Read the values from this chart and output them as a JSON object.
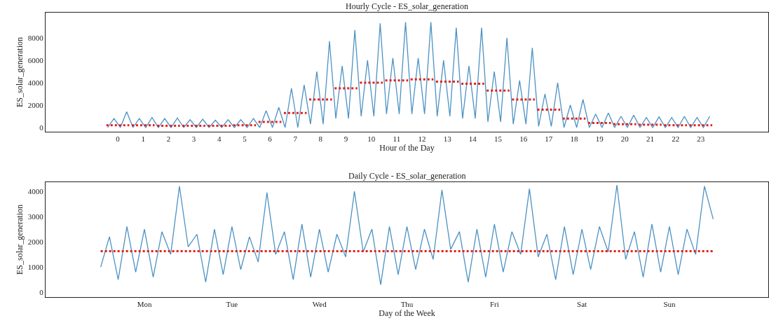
{
  "chart_data": [
    {
      "type": "line",
      "title": "Hourly Cycle - ES_solar_generation",
      "xlabel": "Hour of the Day",
      "ylabel": "ES_solar_generation",
      "xlim": [
        -2.85,
        25.66
      ],
      "ylim": [
        -375,
        10250
      ],
      "xticks": [
        0,
        1,
        2,
        3,
        4,
        5,
        6,
        7,
        8,
        9,
        10,
        11,
        12,
        13,
        14,
        15,
        16,
        17,
        18,
        19,
        20,
        21,
        22,
        23
      ],
      "yticks": [
        0,
        2000,
        4000,
        6000,
        8000
      ],
      "marker": "none",
      "series": [
        {
          "color": "#4c92c3",
          "line_style": "solid",
          "x": [
            -0.4,
            -0.15,
            0.1,
            0.35,
            0.6,
            0.85,
            1.1,
            1.35,
            1.6,
            1.85,
            2.1,
            2.35,
            2.6,
            2.85,
            3.1,
            3.35,
            3.6,
            3.85,
            4.1,
            4.35,
            4.6,
            4.85,
            5.1,
            5.35,
            5.6,
            5.85,
            6.1,
            6.35,
            6.6,
            6.85,
            7.1,
            7.35,
            7.6,
            7.85,
            8.1,
            8.35,
            8.6,
            8.85,
            9.1,
            9.35,
            9.6,
            9.85,
            10.1,
            10.35,
            10.6,
            10.85,
            11.1,
            11.35,
            11.6,
            11.85,
            12.1,
            12.35,
            12.6,
            12.85,
            13.1,
            13.35,
            13.6,
            13.85,
            14.1,
            14.35,
            14.6,
            14.85,
            15.1,
            15.35,
            15.6,
            15.85,
            16.1,
            16.35,
            16.6,
            16.85,
            17.1,
            17.35,
            17.6,
            17.85,
            18.1,
            18.35,
            18.6,
            18.85,
            19.1,
            19.35,
            19.6,
            19.85,
            20.1,
            20.35,
            20.6,
            20.85,
            21.1,
            21.35,
            21.6,
            21.85,
            22.1,
            22.35,
            22.6,
            22.85,
            23.1,
            23.35
          ],
          "values": [
            0,
            800,
            0,
            1400,
            0,
            800,
            0,
            900,
            0,
            800,
            0,
            850,
            0,
            700,
            0,
            750,
            0,
            650,
            0,
            700,
            0,
            700,
            0,
            800,
            0,
            1500,
            0,
            1800,
            0,
            3500,
            0,
            3800,
            300,
            5000,
            300,
            7700,
            800,
            5500,
            800,
            8700,
            1000,
            6000,
            1000,
            9300,
            1200,
            6200,
            1200,
            9400,
            1200,
            6200,
            1200,
            9400,
            1000,
            6000,
            1000,
            8900,
            800,
            5500,
            800,
            8900,
            500,
            5000,
            500,
            8000,
            300,
            4200,
            300,
            7100,
            100,
            3000,
            100,
            4000,
            0,
            2000,
            0,
            2500,
            0,
            1200,
            0,
            1300,
            0,
            1000,
            0,
            1100,
            0,
            900,
            0,
            950,
            0,
            900,
            0,
            1000,
            0,
            900,
            0,
            1000
          ]
        },
        {
          "color": "#e3201b",
          "line_style": "dotted",
          "x": [
            -0.45,
            0.45,
            0.5,
            0.55,
            1.45,
            1.5,
            1.55,
            2.45,
            2.5,
            2.55,
            3.45,
            3.5,
            3.55,
            4.45,
            4.5,
            4.55,
            5.45,
            5.5,
            5.55,
            6.45,
            6.5,
            6.55,
            7.45,
            7.5,
            7.55,
            8.45,
            8.5,
            8.55,
            9.45,
            9.5,
            9.55,
            10.45,
            10.5,
            10.55,
            11.45,
            11.5,
            11.55,
            12.45,
            12.5,
            12.55,
            13.45,
            13.5,
            13.55,
            14.45,
            14.5,
            14.55,
            15.45,
            15.5,
            15.55,
            16.45,
            16.5,
            16.55,
            17.45,
            17.5,
            17.55,
            18.45,
            18.5,
            18.55,
            19.45,
            19.5,
            19.55,
            20.45,
            20.5,
            20.55,
            21.45,
            21.5,
            21.55,
            22.45,
            22.5,
            22.55,
            23.45
          ],
          "values": [
            200,
            200,
            null,
            200,
            200,
            null,
            150,
            150,
            null,
            150,
            150,
            null,
            150,
            150,
            null,
            200,
            200,
            null,
            500,
            500,
            null,
            1300,
            1300,
            null,
            2500,
            2500,
            null,
            3500,
            3500,
            null,
            4000,
            4000,
            null,
            4200,
            4200,
            null,
            4300,
            4300,
            null,
            4100,
            4100,
            null,
            3900,
            3900,
            null,
            3300,
            3300,
            null,
            2500,
            2500,
            null,
            1600,
            1600,
            null,
            800,
            800,
            null,
            400,
            400,
            null,
            300,
            300,
            null,
            250,
            250,
            null,
            200,
            200,
            null,
            200,
            200
          ]
        }
      ]
    },
    {
      "type": "line",
      "title": "Daily Cycle - ES_solar_generation",
      "xlabel": "Day of the Week",
      "ylabel": "ES_solar_generation",
      "categories": [
        null,
        null,
        null,
        null,
        null,
        "Mon",
        null,
        null,
        null,
        null,
        null,
        null,
        null,
        null,
        null,
        "Tue",
        null,
        null,
        null,
        null,
        null,
        null,
        null,
        null,
        null,
        "Wed",
        null,
        null,
        null,
        null,
        null,
        null,
        null,
        null,
        null,
        "Thu",
        null,
        null,
        null,
        null,
        null,
        null,
        null,
        null,
        null,
        "Fri",
        null,
        null,
        null,
        null,
        null,
        null,
        null,
        null,
        null,
        "Sat",
        null,
        null,
        null,
        null,
        null,
        null,
        null,
        null,
        null,
        "Sun",
        null,
        null,
        null,
        null,
        null
      ],
      "ylim": [
        -190,
        4360
      ],
      "yticks": [
        0,
        1000,
        2000,
        3000,
        4000
      ],
      "marker": "none",
      "series": [
        {
          "color": "#4c92c3",
          "line_style": "solid",
          "values": [
            1000,
            2200,
            500,
            2600,
            800,
            2500,
            600,
            2400,
            1500,
            4200,
            1800,
            2300,
            400,
            2500,
            700,
            2600,
            900,
            2200,
            1200,
            3950,
            1500,
            2400,
            500,
            2700,
            600,
            2500,
            800,
            2300,
            1400,
            4000,
            1600,
            2500,
            300,
            2600,
            700,
            2600,
            900,
            2500,
            1300,
            4050,
            1700,
            2400,
            400,
            2500,
            600,
            2700,
            800,
            2400,
            1500,
            4100,
            1400,
            2300,
            500,
            2600,
            700,
            2500,
            900,
            2600,
            1600,
            4250,
            1300,
            2400,
            600,
            2700,
            800,
            2600,
            700,
            2500,
            1500,
            4200,
            2900
          ]
        },
        {
          "color": "#e3201b",
          "line_style": "dotted",
          "values": [
            1630,
            1630,
            1630,
            1630,
            1630,
            1630,
            1630,
            1630,
            1630,
            1630,
            1630,
            1630,
            1630,
            1630,
            1630,
            1630,
            1630,
            1630,
            1630,
            1630,
            1630,
            1630,
            1630,
            1630,
            1630,
            1630,
            1630,
            1630,
            1630,
            1630,
            1630,
            1630,
            1630,
            1630,
            1630,
            1630,
            1630,
            1630,
            1630,
            1630,
            1630,
            1630,
            1630,
            1630,
            1630,
            1630,
            1630,
            1630,
            1630,
            1630,
            1630,
            1630,
            1630,
            1630,
            1630,
            1630,
            1630,
            1630,
            1630,
            1630,
            1630,
            1630,
            1630,
            1630,
            1630,
            1630,
            1630,
            1630,
            1630,
            1630,
            1630
          ]
        }
      ]
    }
  ]
}
